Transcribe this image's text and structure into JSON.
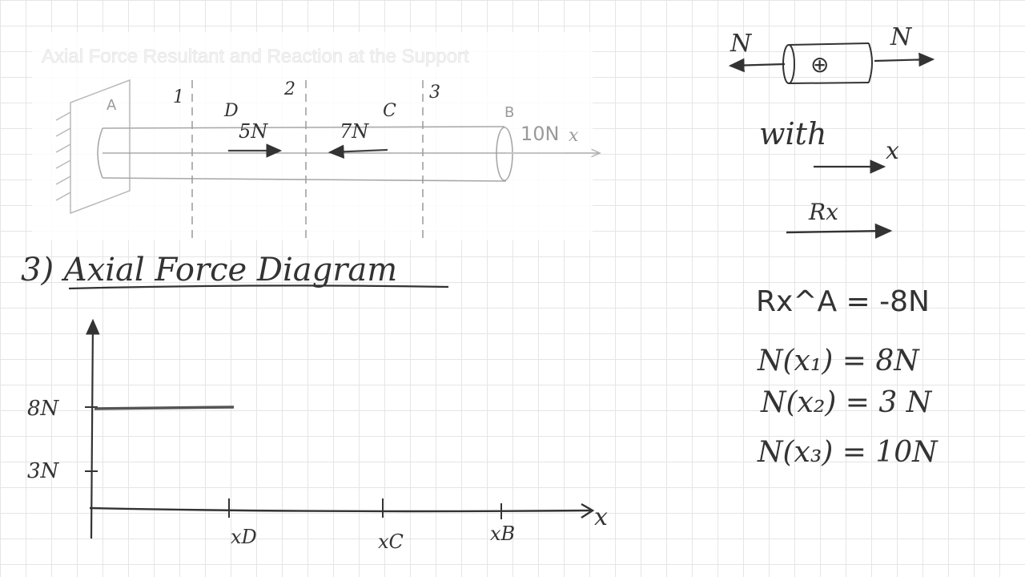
{
  "top_figure": {
    "title": "Axial Force Resultant and Reaction at the Support",
    "section_labels": [
      "1",
      "2",
      "3"
    ],
    "points": {
      "A": "A",
      "B": "B",
      "C": "C",
      "D": "D"
    },
    "loads": {
      "d_label": "5N",
      "c_label": "7N",
      "b_label": "10N"
    },
    "axis_label": "x"
  },
  "diagram": {
    "heading": "3)  Axial Force Diagram",
    "y_ticks": [
      "8N",
      "3N"
    ],
    "x_ticks": [
      "xD",
      "xC",
      "xB"
    ],
    "x_axis_label": "x",
    "segment_value_n": 8
  },
  "right_panel": {
    "n_left": "N",
    "n_right": "N",
    "plus_symbol": "⊕",
    "with_label": "with",
    "x_label": "x",
    "rx_label": "Rx",
    "equations": [
      "Rx^A = -8N",
      "N(x₁) = 8N",
      "N(x₂) = 3 N",
      "N(x₃) = 10N"
    ]
  }
}
